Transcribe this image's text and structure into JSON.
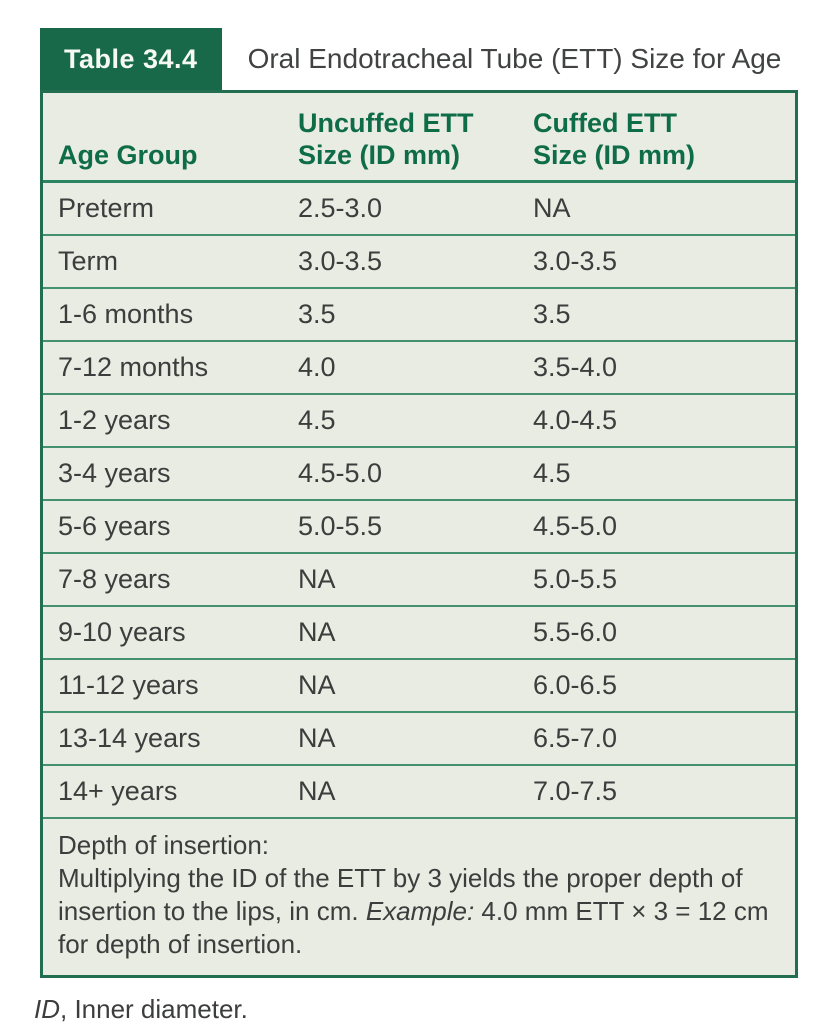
{
  "figure": {
    "badge_label": "Table 34.4",
    "title": "Oral Endotracheal Tube (ETT) Size for Age"
  },
  "table": {
    "header": {
      "col1": "Age Group",
      "col2_line1": "Uncuffed ETT",
      "col2_line2": "Size (ID mm)",
      "col3_line1": "Cuffed ETT",
      "col3_line2": "Size (ID mm)"
    },
    "rows": [
      {
        "age": "Preterm",
        "uncuffed": "2.5-3.0",
        "cuffed": "NA"
      },
      {
        "age": "Term",
        "uncuffed": "3.0-3.5",
        "cuffed": "3.0-3.5"
      },
      {
        "age": "1-6 months",
        "uncuffed": "3.5",
        "cuffed": "3.5"
      },
      {
        "age": "7-12 months",
        "uncuffed": "4.0",
        "cuffed": "3.5-4.0"
      },
      {
        "age": "1-2 years",
        "uncuffed": "4.5",
        "cuffed": "4.0-4.5"
      },
      {
        "age": "3-4 years",
        "uncuffed": "4.5-5.0",
        "cuffed": "4.5"
      },
      {
        "age": "5-6 years",
        "uncuffed": "5.0-5.5",
        "cuffed": "4.5-5.0"
      },
      {
        "age": "7-8 years",
        "uncuffed": "NA",
        "cuffed": "5.0-5.5"
      },
      {
        "age": "9-10 years",
        "uncuffed": "NA",
        "cuffed": "5.5-6.0"
      },
      {
        "age": "11-12 years",
        "uncuffed": "NA",
        "cuffed": "6.0-6.5"
      },
      {
        "age": "13-14 years",
        "uncuffed": "NA",
        "cuffed": "6.5-7.0"
      },
      {
        "age": "14+ years",
        "uncuffed": "NA",
        "cuffed": "7.0-7.5"
      }
    ],
    "footnote": {
      "heading": "Depth of insertion:",
      "body_part1": "Multiplying the ID of the ETT by 3 yields the proper depth of insertion to the lips, in cm. ",
      "body_italic": "Example:",
      "body_part2": " 4.0 mm ETT × 3 = 12 cm for depth of insertion."
    }
  },
  "source_note": {
    "abbr": "ID",
    "text": ", Inner diameter."
  },
  "colors": {
    "badge_green": "#17694a",
    "border_green": "#226e50",
    "header_text_green": "#0f6c48",
    "divider_green": "#45916f",
    "background_tint": "#e9ece2",
    "body_text": "#3c3d3d"
  }
}
